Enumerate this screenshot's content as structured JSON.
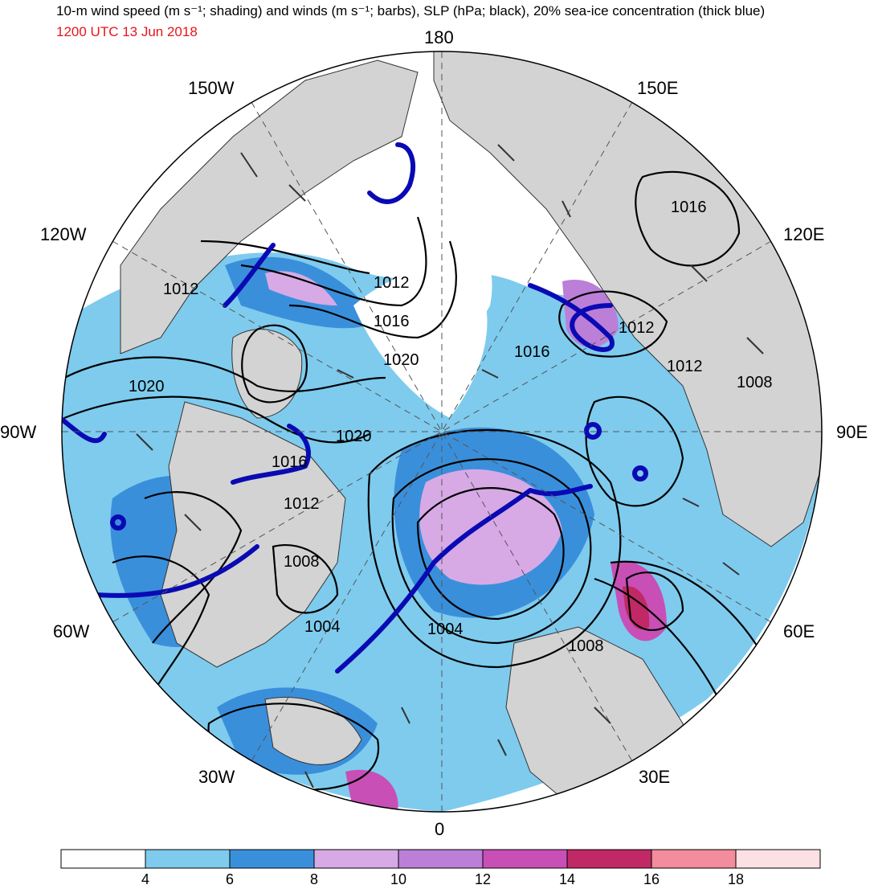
{
  "title": "10-m wind speed (m s⁻¹; shading) and winds (m s⁻¹; barbs), SLP (hPa; black), 20% sea-ice concentration (thick blue)",
  "valid_time": "1200 UTC 13 Jun 2018",
  "colors": {
    "valid_time": "#e8141b",
    "land": "#d3d3d3",
    "ice_edge": "#0a0ab4",
    "isobar": "#000000",
    "background": "#ffffff"
  },
  "longitude_labels": {
    "top": "180",
    "top_left": "150W",
    "top_right": "150E",
    "upper_left": "120W",
    "upper_right": "120E",
    "left": "90W",
    "right": "90E",
    "lower_left": "60W",
    "lower_right": "60E",
    "bottom_left": "30W",
    "bottom_right": "30E",
    "bottom": "0"
  },
  "isobar_labels": [
    "1016",
    "1012",
    "1012",
    "1016",
    "1020",
    "1012",
    "1016",
    "1012",
    "1012",
    "1008",
    "1020",
    "1020",
    "1016",
    "1012",
    "1008",
    "1004",
    "1004",
    "1008"
  ],
  "colorbar": {
    "tick_labels": [
      "4",
      "6",
      "8",
      "10",
      "12",
      "14",
      "16",
      "18"
    ],
    "bins": [
      {
        "color": "#ffffff"
      },
      {
        "color": "#7ecbee"
      },
      {
        "color": "#3a8fdb"
      },
      {
        "color": "#d7aae6"
      },
      {
        "color": "#bb7fd8"
      },
      {
        "color": "#c84fb5"
      },
      {
        "color": "#c02966"
      },
      {
        "color": "#f38c9c"
      },
      {
        "color": "#fbe0e4"
      }
    ]
  }
}
